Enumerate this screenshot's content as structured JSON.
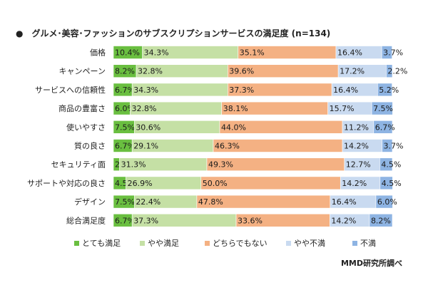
{
  "chart_data": {
    "type": "bar",
    "orientation": "horizontal",
    "stacked": true,
    "title": "グルメ･美容･ファッションのサブスクリプションサービスの満足度 (n=134)",
    "unit": "%",
    "categories": [
      "価格",
      "キャンペーン",
      "サービスへの信頼性",
      "商品の豊富さ",
      "使いやすさ",
      "質の良さ",
      "セキュリティ面",
      "サポートや対応の良さ",
      "デザイン",
      "総合満足度"
    ],
    "series": [
      {
        "name": "とても満足",
        "color": "#6abf40",
        "values": [
          10.4,
          8.2,
          6.7,
          6.0,
          7.5,
          6.7,
          2.2,
          4.5,
          7.5,
          6.7
        ]
      },
      {
        "name": "やや満足",
        "color": "#c5e0a5",
        "values": [
          34.3,
          32.8,
          34.3,
          32.8,
          30.6,
          29.1,
          31.3,
          26.9,
          22.4,
          37.3
        ]
      },
      {
        "name": "どちらでもない",
        "color": "#f4b183",
        "values": [
          35.1,
          39.6,
          37.3,
          38.1,
          44.0,
          46.3,
          49.3,
          50.0,
          47.8,
          33.6
        ]
      },
      {
        "name": "やや不満",
        "color": "#c9daf0",
        "values": [
          16.4,
          17.2,
          16.4,
          15.7,
          11.2,
          14.2,
          12.7,
          14.2,
          16.4,
          14.2
        ]
      },
      {
        "name": "不満",
        "color": "#8eb4e3",
        "values": [
          3.7,
          2.2,
          5.2,
          7.5,
          6.7,
          3.7,
          4.5,
          4.5,
          6.0,
          8.2
        ]
      }
    ],
    "xlim": [
      0,
      100
    ],
    "legend_position": "bottom",
    "grid": false
  },
  "source": "MMD研究所調べ",
  "title_bullet": "●"
}
